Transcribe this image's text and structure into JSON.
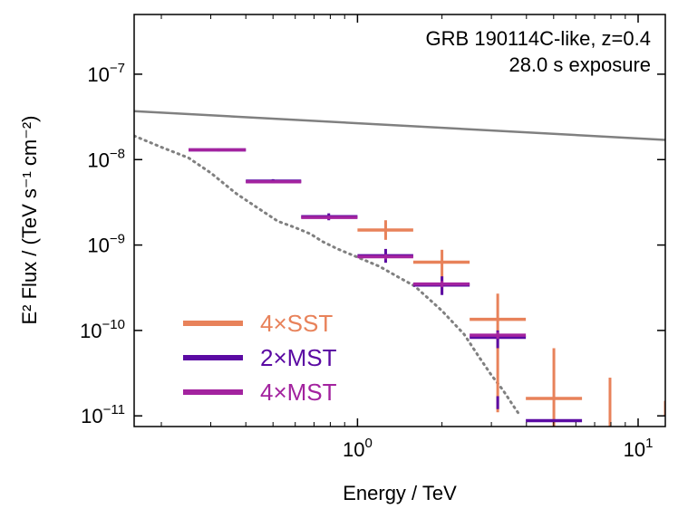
{
  "chart_data": {
    "type": "scatter",
    "xscale": "log",
    "yscale": "log",
    "xlim": [
      0.16,
      12.5
    ],
    "ylim": [
      7.5e-12,
      5e-07
    ],
    "xlabel": "Energy / TeV",
    "ylabel": "E² Flux / (TeV s⁻¹ cm⁻²)",
    "annotations": [
      "GRB 190114C-like, z=0.4",
      "28.0 s exposure"
    ],
    "x_ticks": [
      {
        "value": 1,
        "base": "10",
        "exp": "0"
      },
      {
        "value": 10,
        "base": "10",
        "exp": "1"
      }
    ],
    "y_ticks": [
      {
        "value": 1e-07,
        "base": "10",
        "exp": "−7"
      },
      {
        "value": 1e-08,
        "base": "10",
        "exp": "−8"
      },
      {
        "value": 1e-09,
        "base": "10",
        "exp": "−9"
      },
      {
        "value": 1e-10,
        "base": "10",
        "exp": "−10"
      },
      {
        "value": 1e-11,
        "base": "10",
        "exp": "−11"
      }
    ],
    "legend_position": "lower-left",
    "grid": false,
    "lines": [
      {
        "style": "solid",
        "color": "#808080",
        "x": [
          0.16,
          12.5
        ],
        "y": [
          3.7e-08,
          1.7e-08
        ]
      },
      {
        "style": "dotted",
        "color": "#808080",
        "x": [
          0.16,
          0.2,
          0.25,
          0.3,
          0.37,
          0.45,
          0.52,
          0.6,
          0.68,
          0.75,
          0.85,
          1.0,
          1.2,
          1.4,
          1.6,
          2.0,
          2.4,
          2.7,
          3.0,
          3.3,
          3.6,
          3.8
        ],
        "y": [
          1.9e-08,
          1.4e-08,
          1.05e-08,
          7e-09,
          4e-09,
          2.6e-09,
          1.9e-09,
          1.6e-09,
          1.35e-09,
          1.1e-09,
          9e-10,
          7.2e-10,
          5.6e-10,
          4.2e-10,
          3.3e-10,
          1.7e-10,
          9e-11,
          5e-11,
          3e-11,
          2e-11,
          1.3e-11,
          1e-11
        ]
      }
    ],
    "series": [
      {
        "name": "4×SST",
        "color": "#e8825a",
        "points": [
          {
            "x": 1.26,
            "xlo": 1.0,
            "xhi": 1.58,
            "y": 1.5e-09,
            "ylo": 1.15e-09,
            "yhi": 1.95e-09
          },
          {
            "x": 2.0,
            "xlo": 1.58,
            "xhi": 2.51,
            "y": 6.3e-10,
            "ylo": 2.7e-10,
            "yhi": 8.8e-10
          },
          {
            "x": 3.16,
            "xlo": 2.51,
            "xhi": 3.98,
            "y": 1.35e-10,
            "ylo": 1.1e-11,
            "yhi": 2.7e-10
          },
          {
            "x": 5.01,
            "xlo": 3.98,
            "xhi": 6.31,
            "y": 1.6e-11,
            "ylo": 7.5e-12,
            "yhi": 6.2e-11
          },
          {
            "x": 7.94,
            "xlo": 7.94,
            "xhi": 7.94,
            "y": 1e-11,
            "ylo": 7.5e-12,
            "yhi": 2.8e-11
          },
          {
            "x": 12.5,
            "xlo": 12.5,
            "xhi": 12.5,
            "y": 1.2e-11,
            "ylo": 1e-11,
            "yhi": 1.5e-11
          }
        ]
      },
      {
        "name": "2×MST",
        "color": "#5b0aa3",
        "points": [
          {
            "x": 0.32,
            "xlo": 0.25,
            "xhi": 0.4,
            "y": 1.3e-08,
            "ylo": 1.25e-08,
            "yhi": 1.35e-08
          },
          {
            "x": 0.5,
            "xlo": 0.4,
            "xhi": 0.63,
            "y": 5.6e-09,
            "ylo": 5.3e-09,
            "yhi": 5.9e-09
          },
          {
            "x": 0.79,
            "xlo": 0.63,
            "xhi": 1.0,
            "y": 2.15e-09,
            "ylo": 1.95e-09,
            "yhi": 2.35e-09
          },
          {
            "x": 1.26,
            "xlo": 1.0,
            "xhi": 1.58,
            "y": 7.5e-10,
            "ylo": 6.2e-10,
            "yhi": 9e-10
          },
          {
            "x": 2.0,
            "xlo": 1.58,
            "xhi": 2.51,
            "y": 3.4e-10,
            "ylo": 2.6e-10,
            "yhi": 4.3e-10
          },
          {
            "x": 3.16,
            "xlo": 2.51,
            "xhi": 3.98,
            "y": 8.3e-11,
            "ylo": 6.2e-11,
            "yhi": 1e-10
          },
          {
            "x": 3.16,
            "xlo": 3.16,
            "xhi": 3.16,
            "y": 1.4e-11,
            "ylo": 1.2e-11,
            "yhi": 1.7e-11
          },
          {
            "x": 5.01,
            "xlo": 3.98,
            "xhi": 6.31,
            "y": 8.8e-12,
            "ylo": 8.8e-12,
            "yhi": 8.8e-12
          }
        ]
      },
      {
        "name": "4×MST",
        "color": "#a3239f",
        "points": [
          {
            "x": 0.32,
            "xlo": 0.25,
            "xhi": 0.4,
            "y": 1.3e-08,
            "ylo": 1.27e-08,
            "yhi": 1.33e-08
          },
          {
            "x": 0.5,
            "xlo": 0.4,
            "xhi": 0.63,
            "y": 5.5e-09,
            "ylo": 5.3e-09,
            "yhi": 5.7e-09
          },
          {
            "x": 0.79,
            "xlo": 0.63,
            "xhi": 1.0,
            "y": 2.1e-09,
            "ylo": 2e-09,
            "yhi": 2.2e-09
          },
          {
            "x": 1.26,
            "xlo": 1.0,
            "xhi": 1.58,
            "y": 7.3e-10,
            "ylo": 6.8e-10,
            "yhi": 7.8e-10
          },
          {
            "x": 2.0,
            "xlo": 1.58,
            "xhi": 2.51,
            "y": 3.5e-10,
            "ylo": 3.2e-10,
            "yhi": 3.8e-10
          },
          {
            "x": 3.16,
            "xlo": 2.51,
            "xhi": 3.98,
            "y": 8.8e-11,
            "ylo": 8e-11,
            "yhi": 9.6e-11
          }
        ]
      }
    ]
  }
}
